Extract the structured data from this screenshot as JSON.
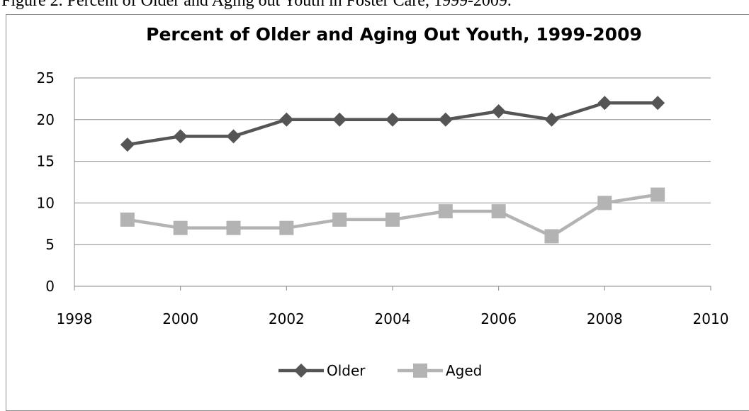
{
  "caption": "Figure 2. Percent of Older and Aging out Youth in Foster Care, 1999-2009.",
  "chart_data": {
    "type": "line",
    "title": "Percent of Older and Aging Out Youth, 1999-2009",
    "xlabel": "",
    "ylabel": "",
    "xlim": [
      1998,
      2010
    ],
    "ylim": [
      0,
      25
    ],
    "xticks": [
      1998,
      2000,
      2002,
      2004,
      2006,
      2008,
      2010
    ],
    "yticks": [
      0,
      5,
      10,
      15,
      20,
      25
    ],
    "grid": "horizontal",
    "legend_position": "bottom",
    "series": [
      {
        "name": "Older",
        "marker": "diamond",
        "color": "#555555",
        "points": [
          [
            1999,
            17
          ],
          [
            2000,
            18
          ],
          [
            2001,
            18
          ],
          [
            2002,
            20
          ],
          [
            2003,
            20
          ],
          [
            2004,
            20
          ],
          [
            2005,
            20
          ],
          [
            2006,
            21
          ],
          [
            2007,
            20
          ],
          [
            2008,
            22
          ],
          [
            2009,
            22
          ]
        ]
      },
      {
        "name": "Aged",
        "marker": "square",
        "color": "#b3b3b3",
        "points": [
          [
            1999,
            8
          ],
          [
            2000,
            7
          ],
          [
            2001,
            7
          ],
          [
            2002,
            7
          ],
          [
            2003,
            8
          ],
          [
            2004,
            8
          ],
          [
            2005,
            9
          ],
          [
            2006,
            9
          ],
          [
            2007,
            6
          ],
          [
            2008,
            10
          ],
          [
            2009,
            11
          ]
        ]
      }
    ]
  }
}
